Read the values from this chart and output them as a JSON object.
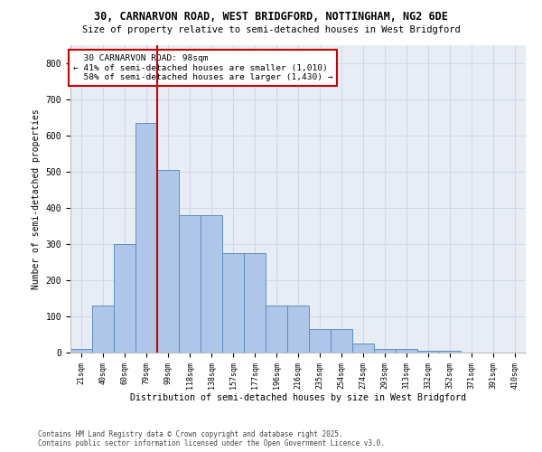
{
  "title_line1": "30, CARNARVON ROAD, WEST BRIDGFORD, NOTTINGHAM, NG2 6DE",
  "title_line2": "Size of property relative to semi-detached houses in West Bridgford",
  "xlabel": "Distribution of semi-detached houses by size in West Bridgford",
  "ylabel": "Number of semi-detached properties",
  "categories": [
    "21sqm",
    "40sqm",
    "60sqm",
    "79sqm",
    "99sqm",
    "118sqm",
    "138sqm",
    "157sqm",
    "177sqm",
    "196sqm",
    "216sqm",
    "235sqm",
    "254sqm",
    "274sqm",
    "293sqm",
    "313sqm",
    "332sqm",
    "352sqm",
    "371sqm",
    "391sqm",
    "410sqm"
  ],
  "values": [
    10,
    130,
    300,
    635,
    505,
    380,
    380,
    275,
    275,
    130,
    130,
    65,
    65,
    25,
    10,
    10,
    5,
    5,
    0,
    0,
    0
  ],
  "bar_color": "#aec6e8",
  "bar_edge_color": "#5a8fc2",
  "grid_color": "#d0d8e8",
  "background_color": "#e8edf5",
  "property_label": "30 CARNARVON ROAD: 98sqm",
  "pct_smaller": 41,
  "n_smaller": 1010,
  "pct_larger": 58,
  "n_larger": 1430,
  "vline_color": "#cc0000",
  "annotation_box_color": "#ffffff",
  "annotation_box_edge": "#cc0000",
  "ylim": [
    0,
    850
  ],
  "yticks": [
    0,
    100,
    200,
    300,
    400,
    500,
    600,
    700,
    800
  ],
  "footnote1": "Contains HM Land Registry data © Crown copyright and database right 2025.",
  "footnote2": "Contains public sector information licensed under the Open Government Licence v3.0."
}
